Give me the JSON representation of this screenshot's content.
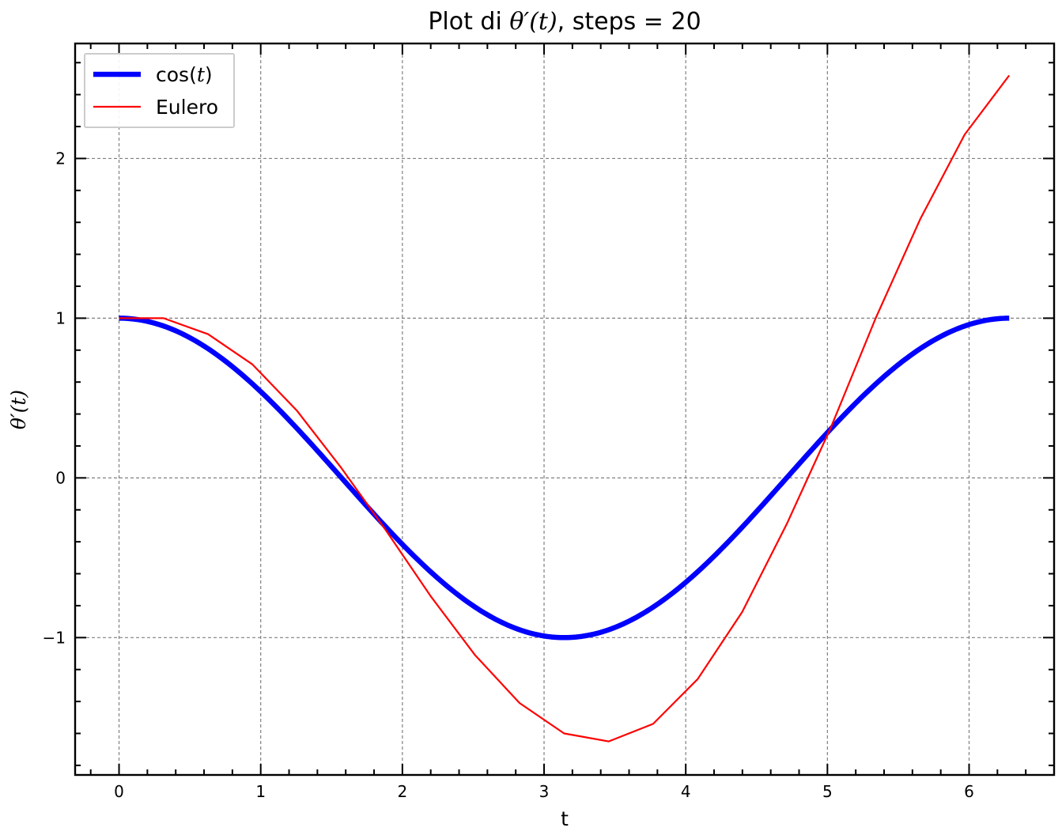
{
  "chart_data": {
    "type": "line",
    "title": "Plot di θ′(t), steps = 20",
    "title_parts": {
      "prefix": "Plot di ",
      "math": "θ′(t)",
      "suffix": ", steps = 20"
    },
    "xlabel": "t",
    "ylabel": "θ′(t)",
    "xlim": [
      -0.31,
      6.6
    ],
    "ylim": [
      -1.86,
      2.72
    ],
    "xticks": [
      0,
      1,
      2,
      3,
      4,
      5,
      6
    ],
    "yticks": [
      -1,
      0,
      1,
      2
    ],
    "xtick_labels": [
      "0",
      "1",
      "2",
      "3",
      "4",
      "5",
      "6"
    ],
    "ytick_labels": [
      "−1",
      "0",
      "1",
      "2"
    ],
    "grid": true,
    "legend": "upper-left",
    "series": [
      {
        "name": "cos(t)",
        "name_parts": {
          "text": "cos(",
          "math": "t",
          "end": ")"
        },
        "color": "#0000ff",
        "style": "thick",
        "function": "cos",
        "x_range": [
          0,
          6.2832
        ]
      },
      {
        "name": "Eulero",
        "color": "#ff0000",
        "style": "thin",
        "x": [
          0,
          0.3142,
          0.6283,
          0.9425,
          1.2566,
          1.5708,
          1.885,
          2.1991,
          2.5133,
          2.8274,
          3.1416,
          3.4558,
          3.7699,
          4.0841,
          4.3982,
          4.7124,
          5.0265,
          5.3407,
          5.6549,
          5.969,
          6.2832
        ],
        "y": [
          1.0,
          1.0,
          0.9,
          0.71,
          0.42,
          0.06,
          -0.33,
          -0.74,
          -1.11,
          -1.41,
          -1.6,
          -1.65,
          -1.54,
          -1.26,
          -0.84,
          -0.29,
          0.32,
          1.0,
          1.62,
          2.15,
          2.52
        ]
      }
    ]
  }
}
